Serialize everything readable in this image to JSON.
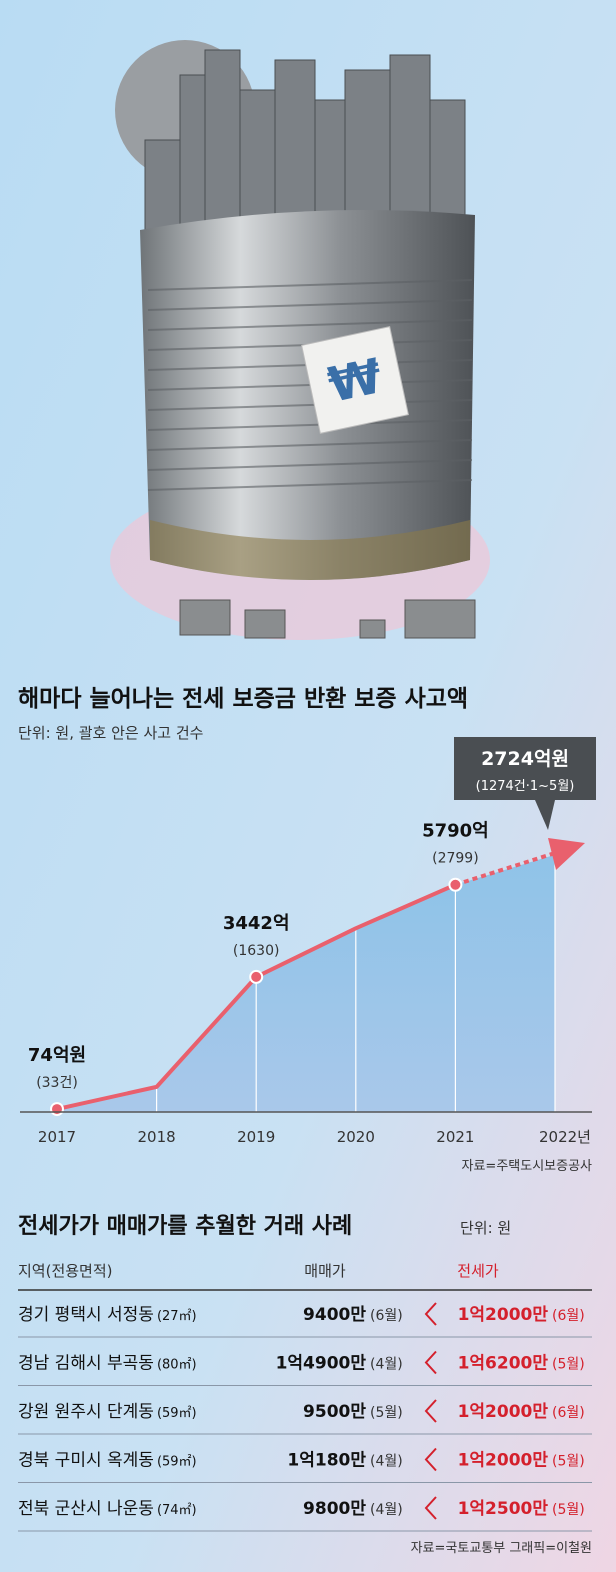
{
  "chart_data": {
    "type": "area",
    "title": "해마다 늘어나는 전세 보증금 반환 보증 사고액",
    "subtitle": "단위: 원, 괄호 안은 사고 건수",
    "categories": [
      "2017",
      "2018",
      "2019",
      "2020",
      "2021",
      "2022년"
    ],
    "values": [
      74,
      640,
      3442,
      4680,
      5790,
      null
    ],
    "value_labels": [
      "74억원",
      null,
      "3442억",
      null,
      "5790억",
      null
    ],
    "count_labels": [
      "(33건)",
      null,
      "(1630)",
      null,
      "(2799)",
      null
    ],
    "callout": {
      "title": "2724억원",
      "text": "(1274건·1~5월)"
    },
    "color": "#e9606d",
    "ylim": [
      0,
      8000
    ],
    "source": "자료=주택도시보증공사"
  },
  "illustration": {
    "sign": "₩"
  },
  "table": {
    "title": "전세가가 매매가를 추월한 거래 사례",
    "unit": "단위: 원",
    "columns": [
      "지역(전용면적)",
      "매매가",
      "전세가"
    ],
    "rows": [
      [
        "경기 평택시 서정동",
        "(27㎡)",
        "9400만",
        "(6월)",
        "1억2000만",
        "(6월)"
      ],
      [
        "경남 김해시 부곡동",
        "(80㎡)",
        "1억4900만",
        "(4월)",
        "1억6200만",
        "(5월)"
      ],
      [
        "강원 원주시 단계동",
        "(59㎡)",
        "9500만",
        "(5월)",
        "1억2000만",
        "(6월)"
      ],
      [
        "경북 구미시 옥계동",
        "(59㎡)",
        "1억180만",
        "(4월)",
        "1억2000만",
        "(5월)"
      ],
      [
        "전북 군산시 나운동",
        "(74㎡)",
        "9800만",
        "(4월)",
        "1억2500만",
        "(5월)"
      ]
    ],
    "credits": "자료=국토교통부  그래픽=이철원"
  }
}
